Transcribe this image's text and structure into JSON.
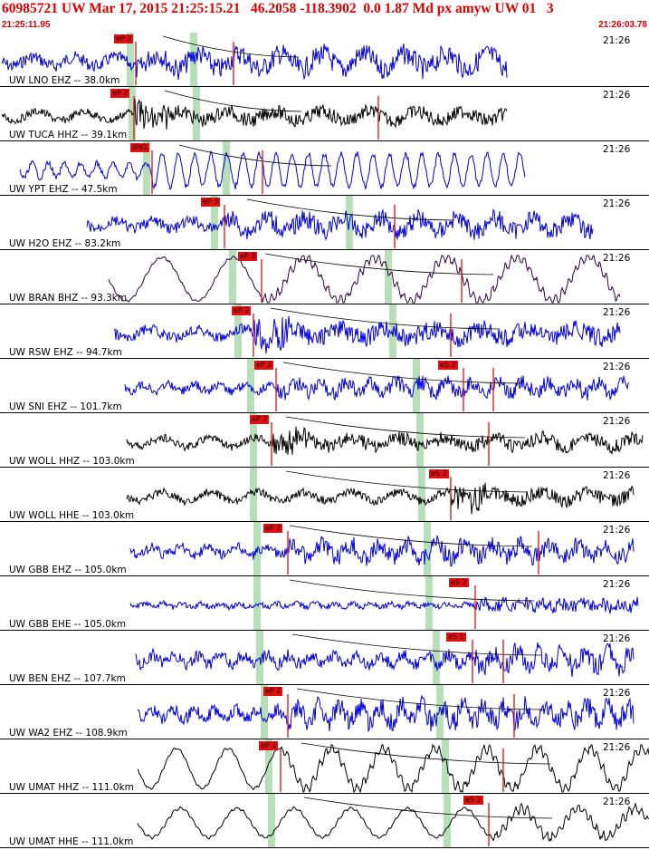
{
  "header": {
    "title": "60985721 UW Mar 17, 2015 21:25:15.21   46.2058 -118.3902  0.0 1.87 Md px amyw UW 01   3",
    "start_time": "21:25:11.95",
    "end_time": "21:26:03.78"
  },
  "colors": {
    "accent": "#dd0000",
    "pick": "#e01010",
    "window": "#b8e0b8",
    "trace_blue": "#0000dd",
    "trace_black": "#000000",
    "trace_purple": "#330044"
  },
  "panels": [
    {
      "label": "UW LNO EHZ -- 38.0km",
      "time": "21:26",
      "color": "blue",
      "picks": [
        {
          "tag": "eP 2"
        }
      ]
    },
    {
      "label": "UW TUCA HHZ -- 39.1km",
      "time": "21:26",
      "color": "black",
      "picks": [
        {
          "tag": "eP 2"
        }
      ]
    },
    {
      "label": "UW YPT EHZ -- 47.5km",
      "time": "21:26",
      "color": "blue",
      "picks": [
        {
          "tag": "iPd1"
        }
      ]
    },
    {
      "label": "UW H2O EHZ -- 83.2km",
      "time": "21:26",
      "color": "blue",
      "picks": [
        {
          "tag": "eP 3"
        }
      ]
    },
    {
      "label": "UW BRAN BHZ -- 93.3km",
      "time": "21:26",
      "color": "purple",
      "picks": [
        {
          "tag": "eP 3"
        }
      ]
    },
    {
      "label": "UW RSW EHZ -- 94.7km",
      "time": "21:26",
      "color": "blue",
      "picks": [
        {
          "tag": "eP 2"
        }
      ]
    },
    {
      "label": "UW SNI EHZ -- 101.7km",
      "time": "21:26",
      "color": "blue",
      "picks": [
        {
          "tag": "eP 2"
        },
        {
          "tag": "eS 2"
        }
      ]
    },
    {
      "label": "UW WOLL HHZ -- 103.0km",
      "time": "21:26",
      "color": "black",
      "picks": [
        {
          "tag": "eP 2"
        }
      ]
    },
    {
      "label": "UW WOLL HHE -- 103.0km",
      "time": "21:26",
      "color": "black",
      "picks": [
        {
          "tag": "eS 2"
        }
      ]
    },
    {
      "label": "UW GBB EHZ -- 105.0km",
      "time": "21:26",
      "color": "blue",
      "picks": [
        {
          "tag": "eP 2"
        }
      ]
    },
    {
      "label": "UW GBB EHE -- 105.0km",
      "time": "21:26",
      "color": "blue",
      "picks": [
        {
          "tag": "eS 2"
        }
      ]
    },
    {
      "label": "UW BEN EHZ -- 107.7km",
      "time": "21:26",
      "color": "blue",
      "picks": [
        {
          "tag": "eS 1"
        }
      ]
    },
    {
      "label": "UW WA2 EHZ -- 108.9km",
      "time": "21:26",
      "color": "blue",
      "picks": [
        {
          "tag": "eP 2"
        }
      ]
    },
    {
      "label": "UW UMAT HHZ -- 111.0km",
      "time": "21:26",
      "color": "black",
      "picks": [
        {
          "tag": "eP 2"
        }
      ]
    },
    {
      "label": "UW UMAT HHE -- 111.0km",
      "time": "21:26",
      "color": "black",
      "picks": [
        {
          "tag": "eS 2"
        }
      ]
    }
  ]
}
